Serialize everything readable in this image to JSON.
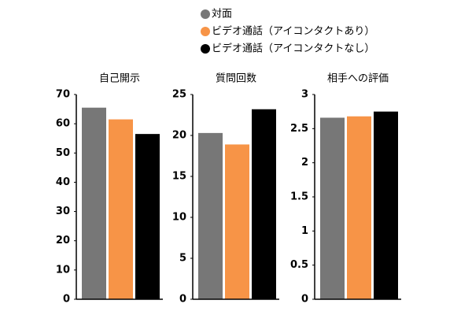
{
  "legend": [
    {
      "name": "対面",
      "color": "#777777"
    },
    {
      "name": "ビデオ通話（アイコンタクトあり）",
      "color": "#f79447"
    },
    {
      "name": "ビデオ通話（アイコンタクトなし）",
      "color": "#000000"
    }
  ],
  "chart_data": [
    {
      "type": "bar",
      "title": "自己開示",
      "values": [
        65.5,
        61.5,
        56.5
      ],
      "ylim": [
        0,
        70
      ],
      "yticks": [
        0,
        10,
        20,
        30,
        40,
        50,
        60,
        70
      ]
    },
    {
      "type": "bar",
      "title": "質問回数",
      "values": [
        20.3,
        18.9,
        23.2
      ],
      "ylim": [
        0,
        25
      ],
      "yticks": [
        0,
        5,
        10,
        15,
        20,
        25
      ]
    },
    {
      "type": "bar",
      "title": "相手への評価",
      "values": [
        2.66,
        2.68,
        2.75
      ],
      "ylim": [
        0,
        3
      ],
      "yticks": [
        0,
        0.5,
        1,
        1.5,
        2,
        2.5,
        3
      ]
    }
  ]
}
